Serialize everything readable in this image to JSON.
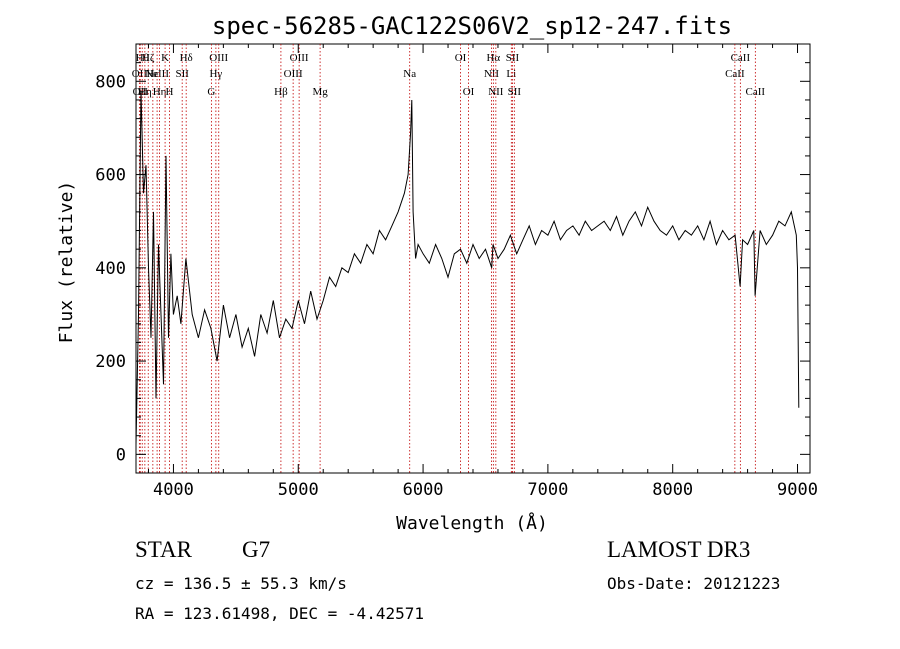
{
  "chart_data": {
    "type": "line",
    "title": "spec-56285-GAC122S06V2_sp12-247.fits",
    "xlabel": "Wavelength (Å)",
    "ylabel": "Flux (relative)",
    "xlim": [
      3700,
      9100
    ],
    "ylim": [
      -40,
      880
    ],
    "xticks": [
      4000,
      5000,
      6000,
      7000,
      8000,
      9000
    ],
    "yticks": [
      0,
      200,
      400,
      600,
      800
    ],
    "grid": false,
    "series": [
      {
        "name": "flux",
        "x": [
          3700,
          3720,
          3740,
          3760,
          3780,
          3800,
          3820,
          3840,
          3860,
          3880,
          3900,
          3920,
          3940,
          3960,
          3980,
          4000,
          4030,
          4060,
          4100,
          4150,
          4200,
          4250,
          4300,
          4350,
          4400,
          4450,
          4500,
          4550,
          4600,
          4650,
          4700,
          4750,
          4800,
          4850,
          4900,
          4950,
          5000,
          5050,
          5100,
          5150,
          5200,
          5250,
          5300,
          5350,
          5400,
          5450,
          5500,
          5550,
          5600,
          5650,
          5700,
          5750,
          5800,
          5850,
          5880,
          5900,
          5910,
          5920,
          5940,
          5960,
          6000,
          6050,
          6100,
          6150,
          6200,
          6250,
          6300,
          6350,
          6400,
          6450,
          6500,
          6550,
          6560,
          6600,
          6650,
          6700,
          6750,
          6800,
          6850,
          6900,
          6950,
          7000,
          7050,
          7100,
          7150,
          7200,
          7250,
          7300,
          7350,
          7400,
          7450,
          7500,
          7550,
          7600,
          7650,
          7700,
          7750,
          7800,
          7850,
          7900,
          7950,
          8000,
          8050,
          8100,
          8150,
          8200,
          8250,
          8300,
          8350,
          8400,
          8450,
          8500,
          8540,
          8560,
          8600,
          8650,
          8660,
          8700,
          8750,
          8800,
          8850,
          8900,
          8950,
          8990,
          9000,
          9010
        ],
        "values": [
          20,
          300,
          780,
          560,
          620,
          400,
          250,
          520,
          120,
          450,
          300,
          150,
          640,
          250,
          430,
          300,
          340,
          280,
          420,
          300,
          250,
          310,
          270,
          200,
          320,
          250,
          300,
          230,
          270,
          210,
          300,
          260,
          330,
          250,
          290,
          270,
          330,
          280,
          350,
          290,
          330,
          380,
          360,
          400,
          390,
          430,
          410,
          450,
          430,
          480,
          460,
          490,
          520,
          560,
          600,
          690,
          760,
          520,
          420,
          450,
          430,
          410,
          450,
          420,
          380,
          430,
          440,
          410,
          450,
          420,
          440,
          400,
          450,
          420,
          440,
          470,
          430,
          460,
          490,
          450,
          480,
          470,
          500,
          460,
          480,
          490,
          470,
          500,
          480,
          490,
          500,
          480,
          510,
          470,
          500,
          520,
          490,
          530,
          500,
          480,
          470,
          490,
          460,
          480,
          470,
          490,
          460,
          500,
          450,
          480,
          460,
          470,
          360,
          460,
          450,
          480,
          340,
          480,
          450,
          470,
          500,
          490,
          520,
          470,
          400,
          100
        ]
      }
    ],
    "line_markers": [
      {
        "x": 3727,
        "label": "OII",
        "row": 2
      },
      {
        "x": 3734,
        "label": "OII",
        "row": 3
      },
      {
        "x": 3750,
        "label": "Hθ",
        "row": 1
      },
      {
        "x": 3771,
        "label": "Hη",
        "row": 3
      },
      {
        "x": 3798,
        "label": "Hζ",
        "row": 1
      },
      {
        "x": 3835,
        "label": "Hε",
        "row": 2
      },
      {
        "x": 3869,
        "label": "NeIII",
        "row": 2
      },
      {
        "x": 3889,
        "label": "Hη",
        "row": 3
      },
      {
        "x": 3933,
        "label": "K",
        "row": 1
      },
      {
        "x": 3968,
        "label": "H",
        "row": 3
      },
      {
        "x": 4070,
        "label": "SII",
        "row": 2
      },
      {
        "x": 4102,
        "label": "Hδ",
        "row": 1
      },
      {
        "x": 4304,
        "label": "G",
        "row": 3
      },
      {
        "x": 4340,
        "label": "Hγ",
        "row": 2
      },
      {
        "x": 4363,
        "label": "OIII",
        "row": 1
      },
      {
        "x": 4861,
        "label": "Hβ",
        "row": 3
      },
      {
        "x": 4959,
        "label": "OIII",
        "row": 2
      },
      {
        "x": 5007,
        "label": "OIII",
        "row": 1
      },
      {
        "x": 5175,
        "label": "Mg",
        "row": 3
      },
      {
        "x": 5893,
        "label": "Na",
        "row": 2
      },
      {
        "x": 6300,
        "label": "OI",
        "row": 1
      },
      {
        "x": 6364,
        "label": "OI",
        "row": 3
      },
      {
        "x": 6548,
        "label": "NII",
        "row": 2
      },
      {
        "x": 6563,
        "label": "Hα",
        "row": 1
      },
      {
        "x": 6583,
        "label": "NII",
        "row": 3
      },
      {
        "x": 6707,
        "label": "Li",
        "row": 2
      },
      {
        "x": 6716,
        "label": "SII",
        "row": 1
      },
      {
        "x": 6731,
        "label": "SII",
        "row": 3
      },
      {
        "x": 8498,
        "label": "CaII",
        "row": 2
      },
      {
        "x": 8542,
        "label": "CaII",
        "row": 1
      },
      {
        "x": 8662,
        "label": "CaII",
        "row": 3
      }
    ]
  },
  "info": {
    "object_class": "STAR",
    "subclass": "G7",
    "survey": "LAMOST DR3",
    "redshift": "cz = 136.5 ± 55.3 km/s",
    "obs_date": "Obs-Date: 20121223",
    "coords": "RA = 123.61498, DEC =  -4.42571"
  }
}
